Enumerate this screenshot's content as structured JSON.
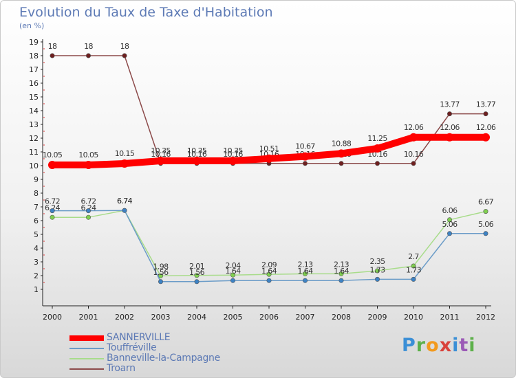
{
  "header": {
    "title": "Evolution du Taux de Taxe d'Habitation",
    "subtitle": "(en %)"
  },
  "logo": {
    "text": "Proxiti"
  },
  "chart_data": {
    "type": "line",
    "title": "Evolution du Taux de Taxe d'Habitation",
    "ylabel": "(en %)",
    "x": [
      "2000",
      "2001",
      "2002",
      "2003",
      "2004",
      "2005",
      "2006",
      "2007",
      "2008",
      "2009",
      "2010",
      "2011",
      "2012"
    ],
    "ylim": [
      0,
      19
    ],
    "yticks": [
      1,
      2,
      3,
      4,
      5,
      6,
      7,
      8,
      9,
      10,
      11,
      12,
      13,
      14,
      15,
      16,
      17,
      18,
      19
    ],
    "grid": false,
    "legend": "bottom-left",
    "series": [
      {
        "name": "SANNERVILLE",
        "color": "#ff0000",
        "values": [
          10.05,
          10.05,
          10.15,
          10.35,
          10.35,
          10.35,
          10.51,
          10.67,
          10.88,
          11.25,
          12.06,
          12.06,
          12.06
        ],
        "labels": [
          "10.05",
          "10.05",
          "10.15",
          "10.35",
          "10.35",
          "10.35",
          "10.51",
          "10.67",
          "10.88",
          "11.25",
          "12.06",
          "12.06",
          "12.06"
        ]
      },
      {
        "name": "Touffréville",
        "color": "#6b9cc8",
        "marker": "#3d82c4",
        "values": [
          6.72,
          6.72,
          6.74,
          1.56,
          1.56,
          1.64,
          1.64,
          1.64,
          1.64,
          1.73,
          1.73,
          5.06,
          5.06
        ],
        "labels": [
          "6.72",
          "6.72",
          "6.74",
          "1.56",
          "1.56",
          "1.64",
          "1.64",
          "1.64",
          "1.64",
          "1.73",
          "1.73",
          "5.06",
          "5.06"
        ]
      },
      {
        "name": "Banneville-la-Campagne",
        "color": "#a8dc8a",
        "marker": "#7fcf4f",
        "values": [
          6.24,
          6.24,
          6.74,
          1.98,
          2.01,
          2.04,
          2.09,
          2.13,
          2.13,
          2.35,
          2.7,
          6.06,
          6.67
        ],
        "labels": [
          "6.24",
          "6.24",
          "6.74",
          "1.98",
          "2.01",
          "2.04",
          "2.09",
          "2.13",
          "2.13",
          "2.35",
          "2.7",
          "6.06",
          "6.67"
        ]
      },
      {
        "name": "Troarn",
        "color": "#8c4a4a",
        "marker": "#6e1f1f",
        "values": [
          18,
          18,
          18,
          10.16,
          10.16,
          10.16,
          10.16,
          10.16,
          10.16,
          10.16,
          10.16,
          13.77,
          13.77
        ],
        "labels": [
          "18",
          "18",
          "18",
          "10.16",
          "10.16",
          "10.16",
          "10.16",
          "10.16",
          "10.16",
          "10.16",
          "10.16",
          "13.77",
          "13.77"
        ]
      }
    ]
  }
}
